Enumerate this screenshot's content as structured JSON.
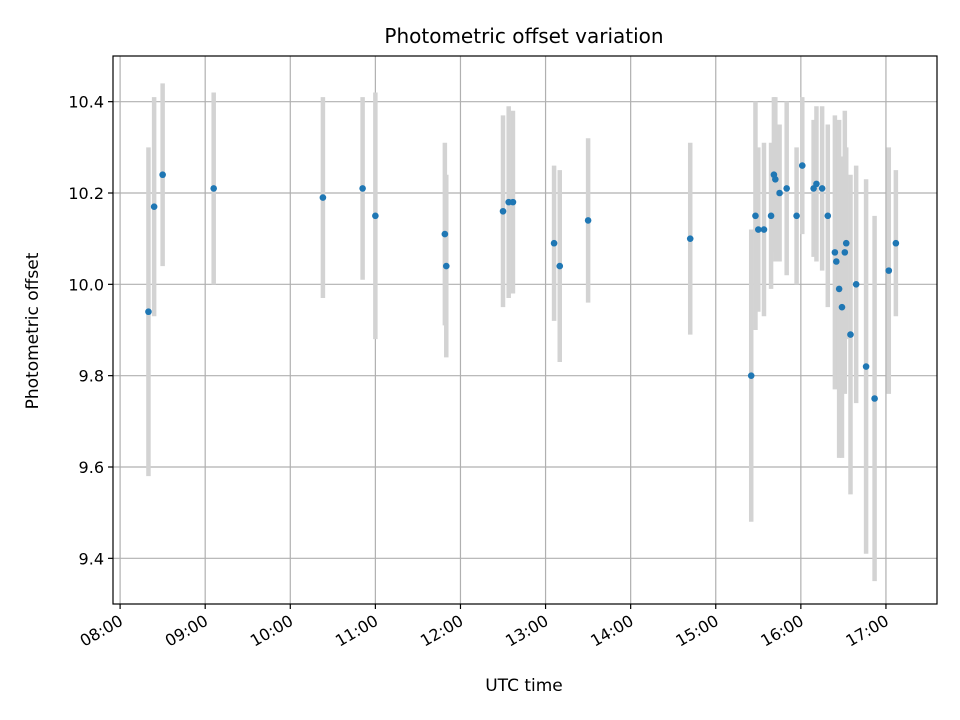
{
  "chart_data": {
    "type": "scatter",
    "title": "Photometric offset variation",
    "xlabel": "UTC time",
    "ylabel": "Photometric offset",
    "xlim": [
      "07:55",
      "17:36"
    ],
    "ylim": [
      9.3,
      10.5
    ],
    "grid": true,
    "x_tick_labels": [
      "08:00",
      "09:00",
      "10:00",
      "11:00",
      "12:00",
      "13:00",
      "14:00",
      "15:00",
      "16:00",
      "17:00"
    ],
    "y_tick_labels": [
      "9.4",
      "9.6",
      "9.8",
      "10.0",
      "10.2",
      "10.4"
    ],
    "colors": {
      "marker": "#1f77b4",
      "errorbar": "#d3d3d3",
      "grid": "#b0b0b0"
    },
    "series": [
      {
        "x": [
          "08:20",
          "08:24",
          "08:30",
          "09:06",
          "10:23",
          "10:51",
          "11:00",
          "11:49",
          "11:50",
          "12:30",
          "12:34",
          "12:37",
          "13:06",
          "13:10",
          "13:30",
          "14:42",
          "15:25",
          "15:28",
          "15:30",
          "15:34",
          "15:39",
          "15:41",
          "15:42",
          "15:45",
          "15:50",
          "15:57",
          "16:01",
          "16:09",
          "16:11",
          "16:15",
          "16:19",
          "16:24",
          "16:25",
          "16:27",
          "16:29",
          "16:31",
          "16:32",
          "16:35",
          "16:39",
          "16:46",
          "16:52",
          "17:02",
          "17:07"
        ],
        "y": [
          9.94,
          10.17,
          10.24,
          10.21,
          10.19,
          10.21,
          10.15,
          10.11,
          10.04,
          10.16,
          10.18,
          10.18,
          10.09,
          10.04,
          10.14,
          10.1,
          9.8,
          10.15,
          10.12,
          10.12,
          10.15,
          10.24,
          10.23,
          10.2,
          10.21,
          10.15,
          10.26,
          10.21,
          10.22,
          10.21,
          10.15,
          10.07,
          10.05,
          9.99,
          9.95,
          10.07,
          10.09,
          9.89,
          10.0,
          9.82,
          9.75,
          10.03,
          10.09
        ],
        "yerr": [
          0.36,
          0.24,
          0.2,
          0.21,
          0.22,
          0.2,
          0.27,
          0.2,
          0.2,
          0.21,
          0.21,
          0.2,
          0.17,
          0.21,
          0.18,
          0.21,
          0.32,
          0.25,
          0.18,
          0.19,
          0.16,
          0.17,
          0.18,
          0.15,
          0.19,
          0.15,
          0.15,
          0.15,
          0.17,
          0.18,
          0.2,
          0.3,
          0.2,
          0.37,
          0.33,
          0.31,
          0.21,
          0.35,
          0.26,
          0.41,
          0.4,
          0.27,
          0.16
        ]
      }
    ]
  }
}
